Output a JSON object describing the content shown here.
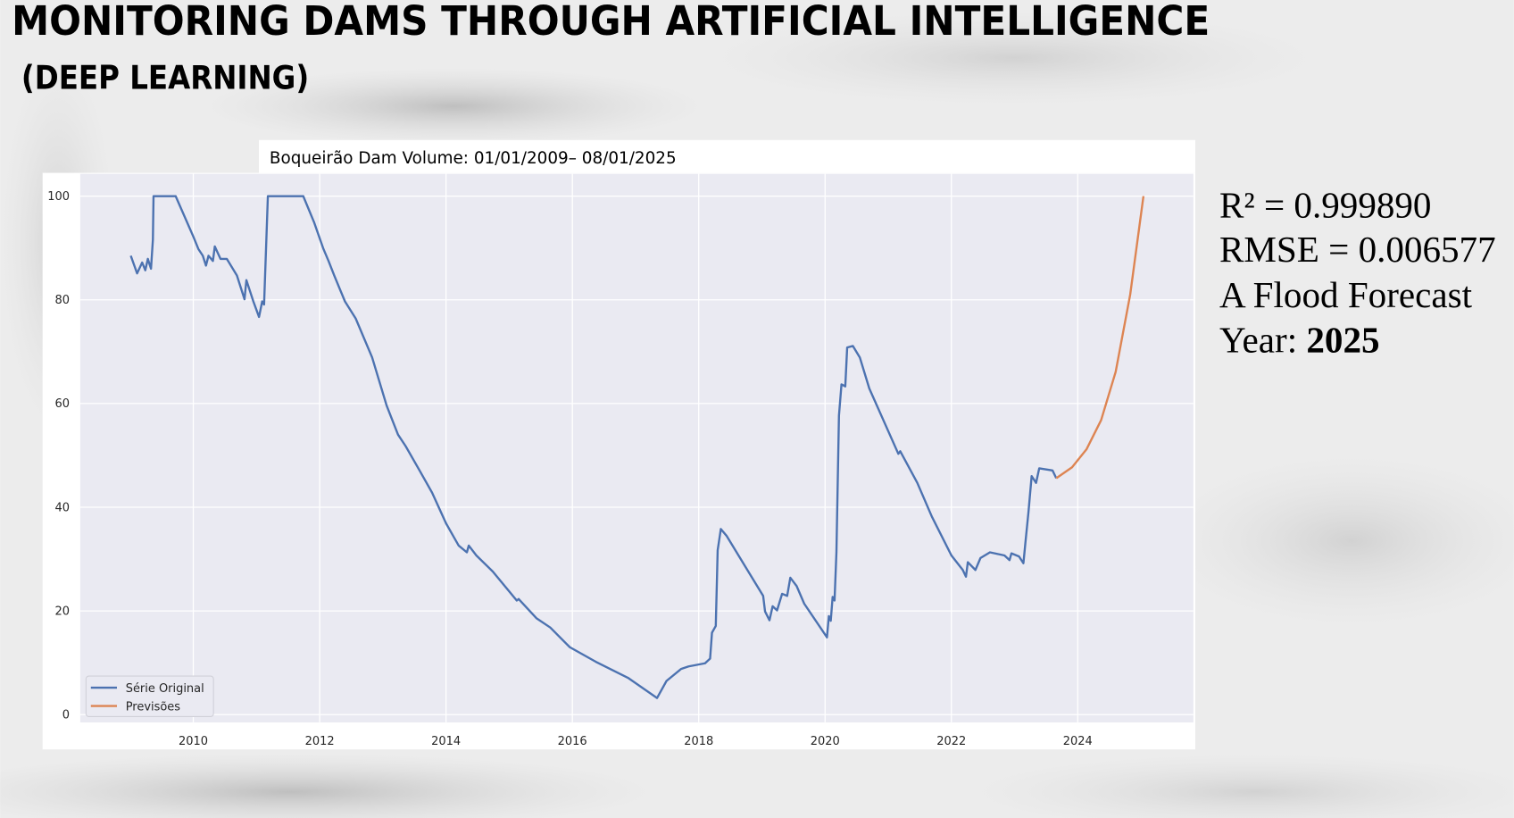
{
  "chart_data": {
    "type": "line",
    "title": "MONITORING DAMS THROUGH ARTIFICIAL INTELLIGENCE",
    "subtitle": "(DEEP LEARNING)",
    "chart_title": "Boqueirão Dam Volume: 01/01/2009– 08/01/2025",
    "stats": [
      "R² = 0.999890",
      "RMSE = 0.006577",
      "A Flood Forecast"
    ],
    "year_label": "Year:",
    "year_value": "2025",
    "xlim": [
      2008.21,
      2025.83
    ],
    "ylim": [
      -1.5,
      104.3
    ],
    "xticks": [
      2010,
      2012,
      2014,
      2016,
      2018,
      2020,
      2022,
      2024
    ],
    "yticks": [
      0,
      20,
      40,
      60,
      80,
      100
    ],
    "grid": true,
    "legend": "lower left",
    "series": [
      {
        "name": "Série Original",
        "color": "#4c72b0",
        "x": [
          2009.01,
          2009.11,
          2009.19,
          2009.24,
          2009.28,
          2009.33,
          2009.36,
          2009.37,
          2009.72,
          2010.0,
          2010.08,
          2010.15,
          2010.2,
          2010.24,
          2010.31,
          2010.34,
          2010.43,
          2010.53,
          2010.69,
          2010.81,
          2010.84,
          2010.95,
          2011.04,
          2011.09,
          2011.12,
          2011.18,
          2011.74,
          2011.91,
          2012.06,
          2012.14,
          2012.23,
          2012.4,
          2012.57,
          2012.83,
          2013.06,
          2013.24,
          2013.36,
          2013.59,
          2013.78,
          2014.0,
          2014.2,
          2014.33,
          2014.36,
          2014.48,
          2014.74,
          2015.12,
          2015.15,
          2015.43,
          2015.65,
          2015.96,
          2016.37,
          2016.88,
          2017.34,
          2017.49,
          2017.72,
          2017.84,
          2018.1,
          2018.18,
          2018.21,
          2018.27,
          2018.3,
          2018.35,
          2018.44,
          2019.02,
          2019.05,
          2019.12,
          2019.17,
          2019.24,
          2019.32,
          2019.4,
          2019.45,
          2019.55,
          2019.67,
          2020.03,
          2020.06,
          2020.09,
          2020.12,
          2020.15,
          2020.18,
          2020.22,
          2020.26,
          2020.32,
          2020.35,
          2020.44,
          2020.55,
          2020.7,
          2021.16,
          2021.19,
          2021.46,
          2021.69,
          2022.0,
          2022.18,
          2022.23,
          2022.26,
          2022.38,
          2022.46,
          2022.61,
          2022.84,
          2022.92,
          2022.95,
          2023.07,
          2023.14,
          2023.17,
          2023.22,
          2023.27,
          2023.34,
          2023.39,
          2023.6,
          2023.66
        ],
        "values": [
          88.5,
          85.1,
          87.2,
          85.7,
          87.9,
          86.0,
          91.6,
          100,
          100,
          92.2,
          89.8,
          88.5,
          86.6,
          88.5,
          87.5,
          90.3,
          87.9,
          87.9,
          84.7,
          80.1,
          83.8,
          79.7,
          76.7,
          79.7,
          79.1,
          100,
          100,
          95,
          89.8,
          87.5,
          84.7,
          79.7,
          76.4,
          68.9,
          59.6,
          54,
          51.8,
          46.9,
          42.8,
          36.9,
          32.6,
          31.3,
          32.6,
          30.7,
          27.6,
          22,
          22.3,
          18.6,
          16.8,
          13,
          10.2,
          7.1,
          3.2,
          6.5,
          8.8,
          9.3,
          9.9,
          10.8,
          15.8,
          17.1,
          31.7,
          35.8,
          34.5,
          22.9,
          19.9,
          18.2,
          20.9,
          20.1,
          23.3,
          22.9,
          26.4,
          24.8,
          21.4,
          14.9,
          19,
          18.1,
          22.7,
          22,
          31.3,
          57.7,
          63.7,
          63.3,
          70.8,
          71.1,
          68.9,
          62.9,
          50.3,
          50.8,
          44.7,
          38.2,
          30.7,
          27.9,
          26.6,
          29.4,
          27.9,
          30.2,
          31.3,
          30.7,
          29.8,
          31.1,
          30.5,
          29.2,
          33,
          39.1,
          46,
          44.7,
          47.5,
          47.1,
          45.6
        ]
      },
      {
        "name": "Previsões",
        "color": "#dd8452",
        "x": [
          2023.66,
          2023.91,
          2024.14,
          2024.37,
          2024.6,
          2024.83,
          2025.04
        ],
        "values": [
          45.6,
          47.7,
          51.2,
          56.8,
          66.1,
          81,
          100
        ]
      }
    ]
  }
}
